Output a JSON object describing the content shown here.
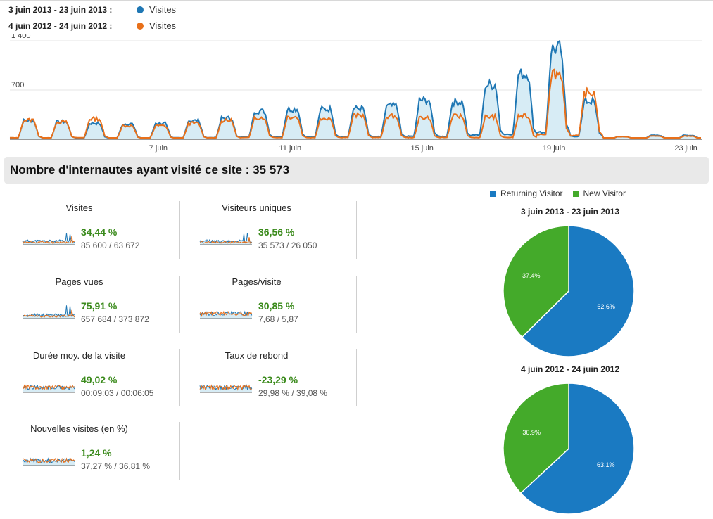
{
  "header": {
    "period_current": "3 juin 2013 - 23 juin 2013 :",
    "period_previous": "4 juin 2012 - 24 juin 2012 :",
    "series_current": "Visites",
    "series_previous": "Visites",
    "color_current": "#1f77b4",
    "color_previous": "#e8701a"
  },
  "chart_data": [
    {
      "type": "line",
      "granularity": "hourly",
      "y_ticks": [
        "1 400",
        "700"
      ],
      "ylim": [
        0,
        1400
      ],
      "x_tick_labels": [
        "7 juin",
        "11 juin",
        "15 juin",
        "19 juin",
        "23 juin"
      ],
      "daily_peaks": {
        "days": [
          "3 juin",
          "4 juin",
          "5 juin",
          "6 juin",
          "7 juin",
          "8 juin",
          "9 juin",
          "10 juin",
          "11 juin",
          "12 juin",
          "13 juin",
          "14 juin",
          "15 juin",
          "16 juin",
          "17 juin",
          "18 juin",
          "19 juin",
          "20 juin",
          "21 juin",
          "22 juin",
          "23 juin"
        ],
        "series": [
          {
            "name": "Visites",
            "period": "3 juin 2013 - 23 juin 2013",
            "values": [
              290,
              270,
              250,
              240,
              250,
              290,
              330,
              440,
              470,
              470,
              480,
              520,
              610,
              580,
              850,
              1020,
              1410,
              590,
              40,
              60,
              60
            ]
          },
          {
            "name": "Visites",
            "period": "4 juin 2012 - 24 juin 2012",
            "values": [
              300,
              270,
              320,
              210,
              210,
              250,
              290,
              340,
              350,
              330,
              370,
              360,
              340,
              360,
              350,
              360,
              1030,
              720,
              40,
              50,
              50
            ]
          }
        ]
      }
    },
    {
      "type": "pie",
      "title": "3 juin 2013 - 23 juin 2013",
      "categories": [
        "Returning Visitor",
        "New Visitor"
      ],
      "values": [
        62.6,
        37.4
      ],
      "labels": [
        "62.6%",
        "37.4%"
      ],
      "colors": [
        "#1a7ac2",
        "#44aa2a"
      ]
    },
    {
      "type": "pie",
      "title": "4 juin 2012 - 24 juin 2012",
      "categories": [
        "Returning Visitor",
        "New Visitor"
      ],
      "values": [
        63.1,
        36.9
      ],
      "labels": [
        "63.1%",
        "36.9%"
      ],
      "colors": [
        "#1a7ac2",
        "#44aa2a"
      ]
    }
  ],
  "summary": {
    "title": "Nombre d'internautes ayant visité ce site : 35 573"
  },
  "metrics": [
    {
      "title": "Visites",
      "change": "34,44 %",
      "values": "85 600 / 63 672"
    },
    {
      "title": "Visiteurs uniques",
      "change": "36,56 %",
      "values": "35 573 / 26 050"
    },
    {
      "title": "Pages vues",
      "change": "75,91 %",
      "values": "657 684 / 373 872"
    },
    {
      "title": "Pages/visite",
      "change": "30,85 %",
      "values": "7,68 / 5,87"
    },
    {
      "title": "Durée moy. de la visite",
      "change": "49,02 %",
      "values": "00:09:03 / 00:06:05"
    },
    {
      "title": "Taux de rebond",
      "change": "-23,29 %",
      "values": "29,98 % / 39,08 %"
    },
    {
      "title": "Nouvelles visites (en %)",
      "change": "1,24 %",
      "values": "37,27 % / 36,81 %"
    }
  ],
  "pie_legend": {
    "returning": "Returning Visitor",
    "new": "New Visitor"
  }
}
